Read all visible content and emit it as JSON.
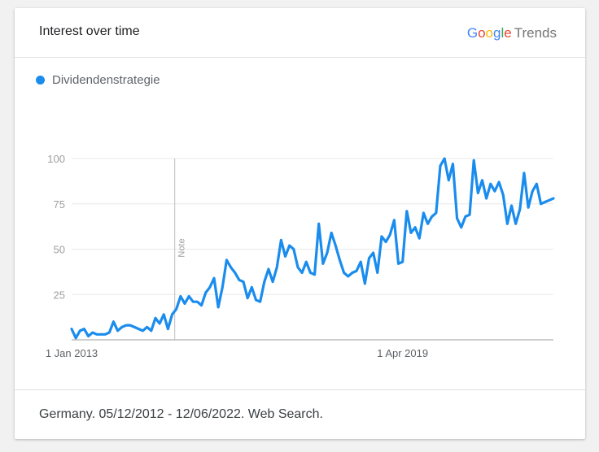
{
  "card": {
    "title": "Interest over time"
  },
  "logo": {
    "google": [
      "G",
      "o",
      "o",
      "g",
      "l",
      "e"
    ],
    "google_colors": [
      "#4285F4",
      "#EA4335",
      "#FBBC05",
      "#4285F4",
      "#34A853",
      "#EA4335"
    ],
    "trends": "Trends"
  },
  "footer": {
    "text": "Germany. 05/12/2012 - 12/06/2022. Web Search."
  },
  "chart_data": {
    "type": "line",
    "ylim": [
      0,
      100
    ],
    "y_ticks": [
      25,
      50,
      75,
      100
    ],
    "x_tick_labels": [
      "1 Jan 2013",
      "1 Apr 2019"
    ],
    "x_tick_index": [
      0,
      79
    ],
    "note_label": "Note",
    "note_index": 25,
    "grid": true,
    "legend_position": "top-left",
    "series": [
      {
        "name": "Dividendenstrategie",
        "color": "#1a8ced",
        "values": [
          6,
          1,
          5,
          6,
          2,
          4,
          3,
          3,
          3,
          4,
          10,
          5,
          7,
          8,
          8,
          7,
          6,
          5,
          7,
          5,
          12,
          9,
          14,
          6,
          14,
          17,
          24,
          20,
          24,
          21,
          21,
          19,
          26,
          29,
          34,
          18,
          29,
          44,
          40,
          37,
          33,
          32,
          23,
          29,
          22,
          21,
          32,
          39,
          32,
          40,
          55,
          46,
          52,
          50,
          40,
          37,
          43,
          37,
          36,
          64,
          42,
          48,
          59,
          52,
          44,
          37,
          35,
          37,
          38,
          43,
          31,
          45,
          48,
          37,
          57,
          54,
          58,
          66,
          42,
          43,
          71,
          59,
          62,
          56,
          70,
          64,
          68,
          70,
          96,
          100,
          88,
          97,
          67,
          62,
          68,
          69,
          99,
          81,
          88,
          78,
          86,
          82,
          87,
          80,
          64,
          74,
          64,
          72,
          92,
          73,
          82,
          86,
          75,
          76,
          77,
          78
        ]
      }
    ]
  }
}
